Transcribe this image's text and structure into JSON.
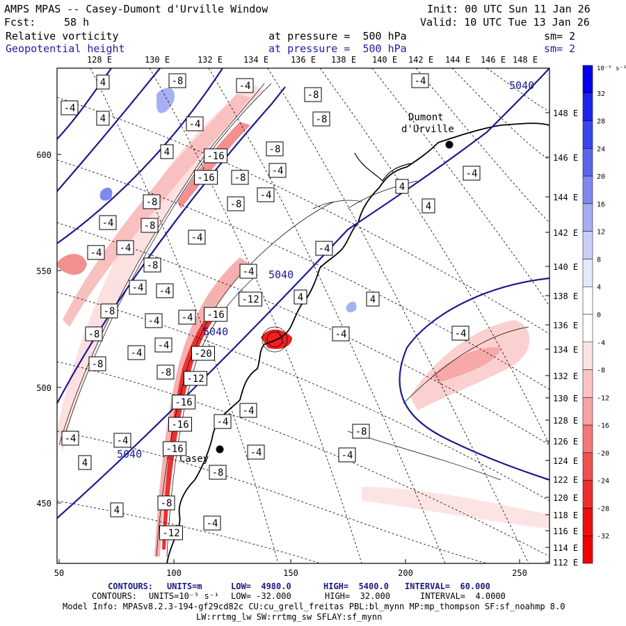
{
  "header": {
    "title": "AMPS MPAS -- Casey-Dumont d'Urville Window",
    "init": "Init: 00 UTC Sun 11 Jan 26",
    "fcst_label": "Fcst:",
    "fcst_value": "58 h",
    "valid": "Valid: 10 UTC Tue 13 Jan 26",
    "field1_name": "Relative vorticity",
    "field1_pressure": "at pressure =  500 hPa",
    "field1_sm": "sm= 2",
    "field2_name": "Geopotential height",
    "field2_pressure": "at pressure =  500 hPa",
    "field2_sm": "sm= 2"
  },
  "top_axis_labels": [
    "128 E",
    "130 E",
    "132 E",
    "134 E",
    "136 E",
    "138 E",
    "140 E",
    "142 E",
    "144 E",
    "146 E",
    "148 E"
  ],
  "right_axis_labels": [
    "148 E",
    "146 E",
    "144 E",
    "142 E",
    "140 E",
    "138 E",
    "136 E",
    "134 E",
    "132 E",
    "130 E",
    "128 E",
    "126 E",
    "124 E",
    "122 E",
    "120 E",
    "118 E",
    "116 E",
    "114 E",
    "112 E"
  ],
  "left_axis_labels": [
    "600",
    "550",
    "500",
    "450"
  ],
  "bottom_axis_labels": [
    "50",
    "100",
    "150",
    "200",
    "250"
  ],
  "colorbar": {
    "unit_label": "10⁻⁵ s⁻¹",
    "ticks": [
      "32",
      "28",
      "24",
      "20",
      "16",
      "12",
      "8",
      "4",
      "0",
      "-4",
      "-8",
      "-12",
      "-16",
      "-20",
      "-24",
      "-28",
      "-32"
    ],
    "colors": [
      "#0000ee",
      "#1f24ee",
      "#3a45ee",
      "#5a66ee",
      "#7f88f0",
      "#a4acf4",
      "#c8cef8",
      "#e6e8fc",
      "#ffffff",
      "#ffffff",
      "#fde4e4",
      "#fbc4c4",
      "#f8a2a2",
      "#f47878",
      "#f05050",
      "#ee2e2e",
      "#ee0e0e",
      "#ee0000"
    ]
  },
  "map_labels": {
    "stations": [
      "Dumont d'Urville",
      "Casey"
    ],
    "height_labels": [
      "5040",
      "5040",
      "5040",
      "5040"
    ],
    "vort_labels": [
      "4",
      "-8",
      "-4",
      "4",
      "4",
      "-4",
      "-8",
      "-4",
      "-8",
      "-16",
      "-8",
      "-4",
      "-16",
      "-8",
      "-4",
      "-8",
      "-4",
      "-8",
      "-4",
      "-8",
      "-4",
      "-4",
      "-8",
      "-4",
      "-12",
      "-4",
      "-4",
      "-8",
      "-4",
      "-16",
      "-20",
      "-12",
      "-16",
      "-16",
      "-8",
      "-16",
      "-8",
      "-12",
      "-8",
      "-4",
      "-4",
      "-4",
      "-8",
      "-4",
      "-4",
      "-4",
      "-8",
      "-4",
      "-4",
      "-4",
      "4",
      "4",
      "4",
      "4",
      "-4",
      "-8",
      "-4",
      "4",
      "4",
      "-4",
      "-4",
      "-4",
      "-4"
    ]
  },
  "footer": {
    "line1": {
      "prefix": "CONTOURS:",
      "units": "UNITS=m",
      "low": "LOW=  4980.0",
      "high": "HIGH=  5400.0",
      "interval": "INTERVAL=  60.000"
    },
    "line2": {
      "prefix": "CONTOURS:",
      "units": "UNITS=10⁻⁵ s⁻¹",
      "low": "LOW= -32.000",
      "high": "HIGH=  32.000",
      "interval": "INTERVAL=  4.0000"
    },
    "model_info": "Model Info: MPASv8.2.3-194-gf29cd82c CU:cu_grell_freitas PBL:bl_mynn MP:mp_thompson SF:sf_noahmp 8.0",
    "model_info2": "LW:rrtmg_lw SW:rrtmg_sw SFLAY:sf_mynn"
  }
}
